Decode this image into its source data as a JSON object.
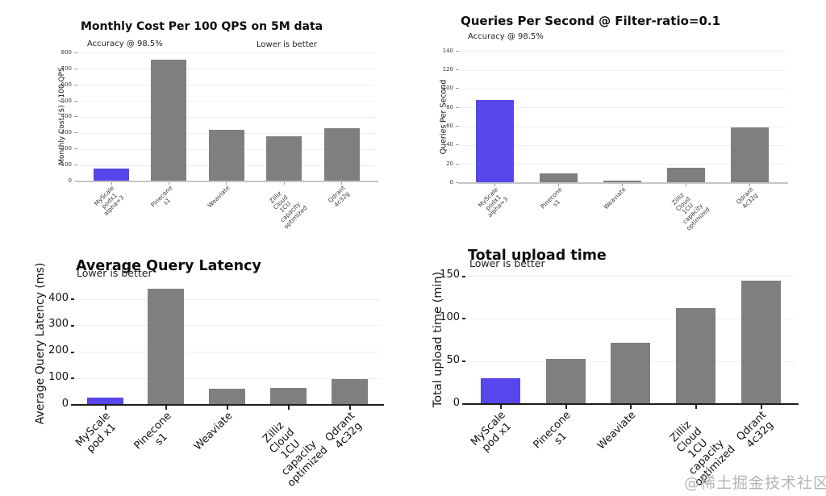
{
  "page": {
    "background": "#ffffff",
    "watermark": "@稀土掘金技术社区"
  },
  "colors": {
    "highlight": "#5646ec",
    "bar": "#7f7f7f",
    "grid": "#efefef",
    "axis_light": "#c6c6c6",
    "axis_dark": "#1c1c1c",
    "tick_text_small": "#3a3a3a",
    "tick_text_big": "#111111",
    "dash_small": "#9a9a9a",
    "dash_big": "#222222",
    "watermark": "#b5b5b5"
  },
  "chart_data": [
    {
      "id": "monthly-cost",
      "type": "bar",
      "title": "Monthly Cost Per 100 QPS on 5M data",
      "annotation_left": "Accuracy @ 98.5%",
      "annotation_right": "Lower is better",
      "ylabel": "Monthly Cost ($) / 100 QPS",
      "ylim": [
        0,
        800
      ],
      "yticks": [
        0,
        100,
        200,
        300,
        400,
        500,
        600,
        700,
        800
      ],
      "categories": [
        "MyScale podx1\nalpha=3",
        "Pinecone s1",
        "Weaviate",
        "Zilliz Cloud 1CU\ncapacity optimized",
        "Qdrant 4c32g"
      ],
      "values": [
        80,
        762,
        324,
        281,
        334
      ],
      "highlight_index": 0,
      "grid": true,
      "legend": null
    },
    {
      "id": "queries-per-second",
      "type": "bar",
      "title": "Queries Per Second @ Filter-ratio=0.1",
      "annotation_left": "Accuracy @ 98.5%",
      "annotation_right": "",
      "ylabel": "Queries Per Second",
      "ylim": [
        0,
        140
      ],
      "yticks": [
        0,
        20,
        40,
        60,
        80,
        100,
        120,
        140
      ],
      "categories": [
        "MyScale podx1\nalpha=3",
        "Pinecone s1",
        "Weaviate",
        "Zilliz Cloud 1CU\ncapacity optimized",
        "Qdrant 4c32g"
      ],
      "values": [
        88,
        10,
        3,
        16,
        59
      ],
      "highlight_index": 0,
      "grid": true,
      "legend": null
    },
    {
      "id": "average-query-latency",
      "type": "bar",
      "title": "Average Query Latency",
      "annotation_left": "Lower is better",
      "annotation_right": "",
      "ylabel": "Average Query Latency (ms)",
      "ylim": [
        0,
        460
      ],
      "yticks": [
        0,
        100,
        200,
        300,
        400
      ],
      "categories": [
        "MyScale pod x1",
        "Pinecone s1",
        "Weaviate",
        "Zilliz Cloud 1CU\ncapacity optimized",
        "Qdrant 4c32g"
      ],
      "values": [
        28,
        440,
        60,
        63,
        98
      ],
      "highlight_index": 0,
      "grid": true,
      "legend": null
    },
    {
      "id": "total-upload-time",
      "type": "bar",
      "title": "Total upload time",
      "annotation_left": "Lower is better",
      "annotation_right": "",
      "ylabel": "Total upload time (min)",
      "ylim": [
        0,
        155
      ],
      "yticks": [
        0,
        50,
        100,
        150
      ],
      "categories": [
        "MyScale pod x1",
        "Pinecone s1",
        "Weaviate",
        "Zilliz Cloud 1CU\ncapacity optimized",
        "Qdrant 4c32g"
      ],
      "values": [
        30,
        53,
        72,
        113,
        145
      ],
      "highlight_index": 0,
      "grid": true,
      "legend": null
    }
  ]
}
